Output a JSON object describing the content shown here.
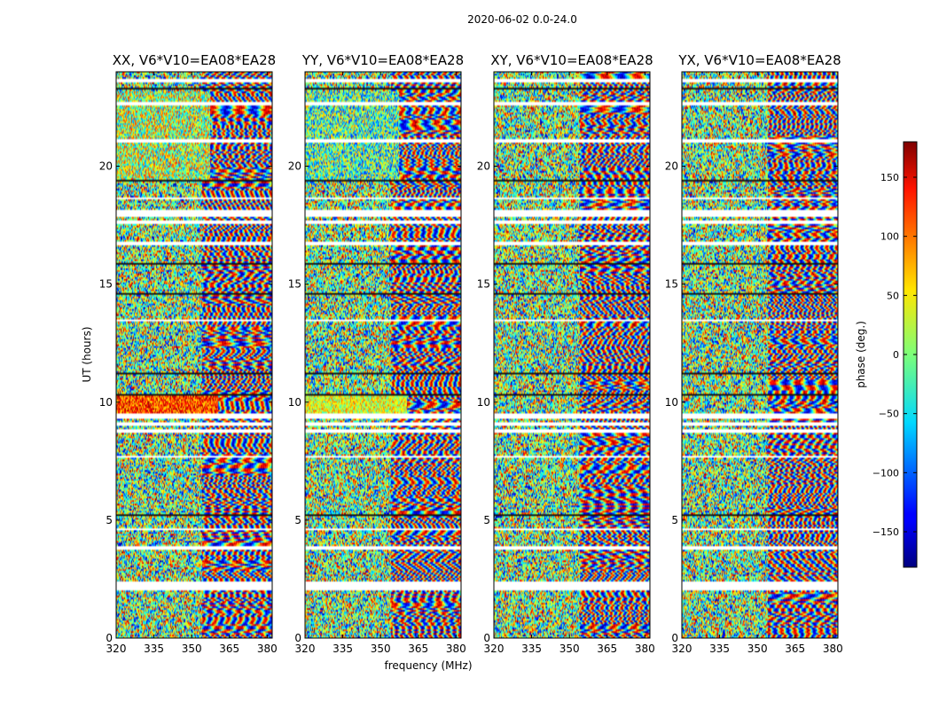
{
  "figure_title": "2020-06-02 0.0-24.0",
  "chart_data": {
    "type": "heatmap",
    "shared_xlabel": "frequency (MHz)",
    "ylabel": "UT (hours)",
    "xlim": [
      320,
      382
    ],
    "ylim": [
      0,
      24
    ],
    "x_ticks": [
      320,
      335,
      350,
      365,
      380
    ],
    "y_ticks": [
      0,
      5,
      10,
      15,
      20
    ],
    "colorbar": {
      "label": "phase (deg.)",
      "range": [
        -180,
        180
      ],
      "ticks": [
        150,
        100,
        50,
        0,
        -50,
        -100,
        -150
      ],
      "tick_labels": [
        "150",
        "100",
        "50",
        "0",
        "−50",
        "−100",
        "−150"
      ],
      "colormap": "jet"
    },
    "panels": [
      {
        "title": "XX, V6*V10=EA08*EA28",
        "polarization": "XX"
      },
      {
        "title": "YY, V6*V10=EA08*EA28",
        "polarization": "YY"
      },
      {
        "title": "XY, V6*V10=EA08*EA28",
        "polarization": "XY"
      },
      {
        "title": "YX, V6*V10=EA08*EA28",
        "polarization": "YX"
      }
    ],
    "flagged_hours": [
      [
        2.0,
        2.35
      ],
      [
        3.75,
        3.85
      ],
      [
        4.55,
        4.65
      ],
      [
        7.6,
        7.7
      ],
      [
        8.7,
        8.85
      ],
      [
        9.0,
        9.15
      ],
      [
        9.3,
        9.55
      ],
      [
        13.4,
        13.5
      ],
      [
        16.7,
        16.8
      ],
      [
        17.6,
        17.7
      ],
      [
        17.9,
        18.15
      ],
      [
        18.6,
        18.7
      ],
      [
        21.05,
        21.15
      ],
      [
        22.6,
        22.75
      ],
      [
        23.6,
        23.75
      ]
    ],
    "dark_hours": [
      [
        1.45,
        1.5
      ],
      [
        5.15,
        5.25
      ],
      [
        10.25,
        10.35
      ],
      [
        11.15,
        11.25
      ],
      [
        14.55,
        14.6
      ],
      [
        15.85,
        15.9
      ],
      [
        19.35,
        19.45
      ],
      [
        23.25,
        23.35
      ]
    ]
  }
}
